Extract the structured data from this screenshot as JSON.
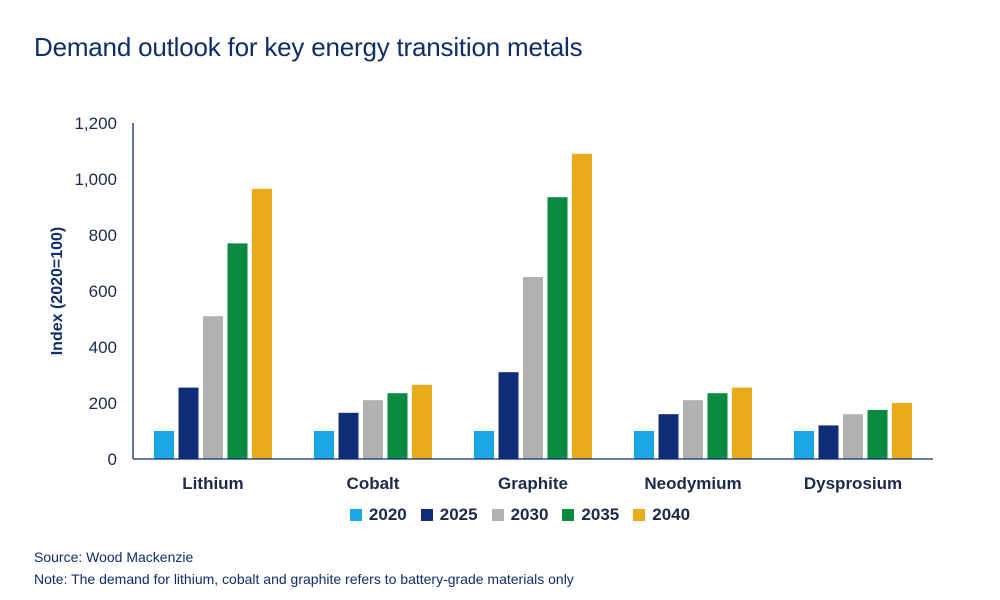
{
  "title": "Demand outlook for key energy transition metals",
  "source": "Source: Wood Mackenzie",
  "note": "Note: The demand for lithium, cobalt and graphite refers to battery-grade materials only",
  "colors": {
    "2020": "#1ba6e6",
    "2025": "#0f2d78",
    "2030": "#b1b1b4",
    "2035": "#0b8a42",
    "2040": "#e9aa1c",
    "axis": "#0f2d6b"
  },
  "chart_data": {
    "type": "bar",
    "title": "Demand outlook for key energy transition metals",
    "xlabel": "",
    "ylabel": "Index (2020=100)",
    "ylim": [
      0,
      1200
    ],
    "yticks": [
      "0",
      "200",
      "400",
      "600",
      "800",
      "1,000",
      "1,200"
    ],
    "grid": false,
    "legend_position": "bottom",
    "categories": [
      "Lithium",
      "Cobalt",
      "Graphite",
      "Neodymium",
      "Dysprosium"
    ],
    "series": [
      {
        "name": "2020",
        "values": [
          100,
          100,
          100,
          100,
          100
        ]
      },
      {
        "name": "2025",
        "values": [
          255,
          165,
          310,
          160,
          120
        ]
      },
      {
        "name": "2030",
        "values": [
          510,
          210,
          650,
          210,
          160
        ]
      },
      {
        "name": "2035",
        "values": [
          770,
          235,
          935,
          235,
          175
        ]
      },
      {
        "name": "2040",
        "values": [
          965,
          265,
          1090,
          255,
          200
        ]
      }
    ]
  }
}
